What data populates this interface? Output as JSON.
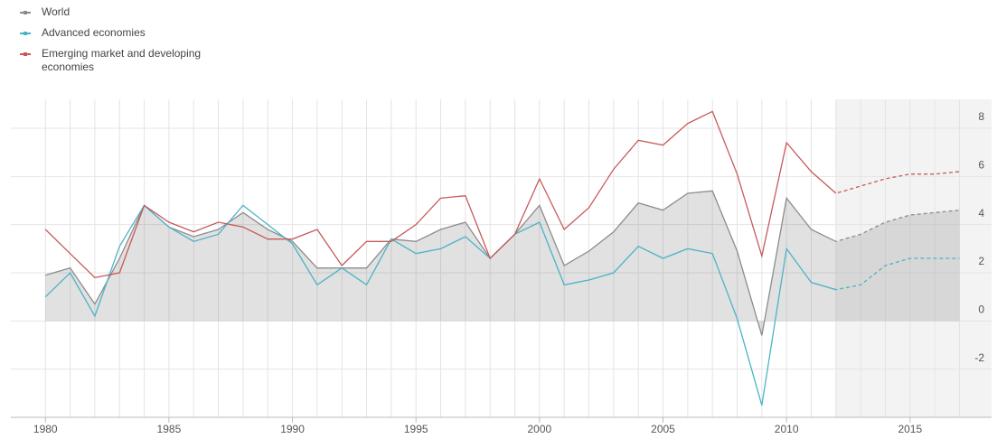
{
  "chart_data": {
    "type": "line",
    "x": [
      1980,
      1981,
      1982,
      1983,
      1984,
      1985,
      1986,
      1987,
      1988,
      1989,
      1990,
      1991,
      1992,
      1993,
      1994,
      1995,
      1996,
      1997,
      1998,
      1999,
      2000,
      2001,
      2002,
      2003,
      2004,
      2005,
      2006,
      2007,
      2008,
      2009,
      2010,
      2011,
      2012,
      2013,
      2014,
      2015,
      2016,
      2017
    ],
    "series": [
      {
        "name": "World",
        "color": "#8c8c8c",
        "area": true,
        "values": [
          1.9,
          2.2,
          0.7,
          2.6,
          4.8,
          3.9,
          3.5,
          3.8,
          4.5,
          3.8,
          3.3,
          2.2,
          2.2,
          2.2,
          3.4,
          3.3,
          3.8,
          4.1,
          2.6,
          3.6,
          4.8,
          2.3,
          2.9,
          3.7,
          4.9,
          4.6,
          5.3,
          5.4,
          2.9,
          -0.6,
          5.1,
          3.8,
          3.3,
          3.6,
          4.1,
          4.4,
          4.5,
          4.6
        ]
      },
      {
        "name": "Advanced economies",
        "color": "#4bb3c6",
        "values": [
          1.0,
          2.0,
          0.2,
          3.1,
          4.8,
          3.9,
          3.3,
          3.6,
          4.8,
          4.0,
          3.2,
          1.5,
          2.2,
          1.5,
          3.4,
          2.8,
          3.0,
          3.5,
          2.6,
          3.6,
          4.1,
          1.5,
          1.7,
          2.0,
          3.1,
          2.6,
          3.0,
          2.8,
          0.1,
          -3.5,
          3.0,
          1.6,
          1.3,
          1.5,
          2.3,
          2.6,
          2.6,
          2.6
        ]
      },
      {
        "name": "Emerging market and developing economies",
        "color": "#c65a5a",
        "values": [
          3.8,
          2.8,
          1.8,
          2.0,
          4.8,
          4.1,
          3.7,
          4.1,
          3.9,
          3.4,
          3.4,
          3.8,
          2.3,
          3.3,
          3.3,
          4.0,
          5.1,
          5.2,
          2.6,
          3.6,
          5.9,
          3.8,
          4.7,
          6.3,
          7.5,
          7.3,
          8.2,
          8.7,
          6.1,
          2.7,
          7.4,
          6.2,
          5.3,
          5.6,
          5.9,
          6.1,
          6.1,
          6.2
        ]
      }
    ],
    "forecast_from": 2012,
    "xlim": [
      1978.6,
      2018.3
    ],
    "xticks": [
      1980,
      1985,
      1990,
      1995,
      2000,
      2005,
      2010,
      2015
    ],
    "ylim": [
      -4,
      9.2
    ],
    "yticks": [
      8,
      6,
      4,
      2,
      0,
      -2
    ],
    "grid": true
  }
}
